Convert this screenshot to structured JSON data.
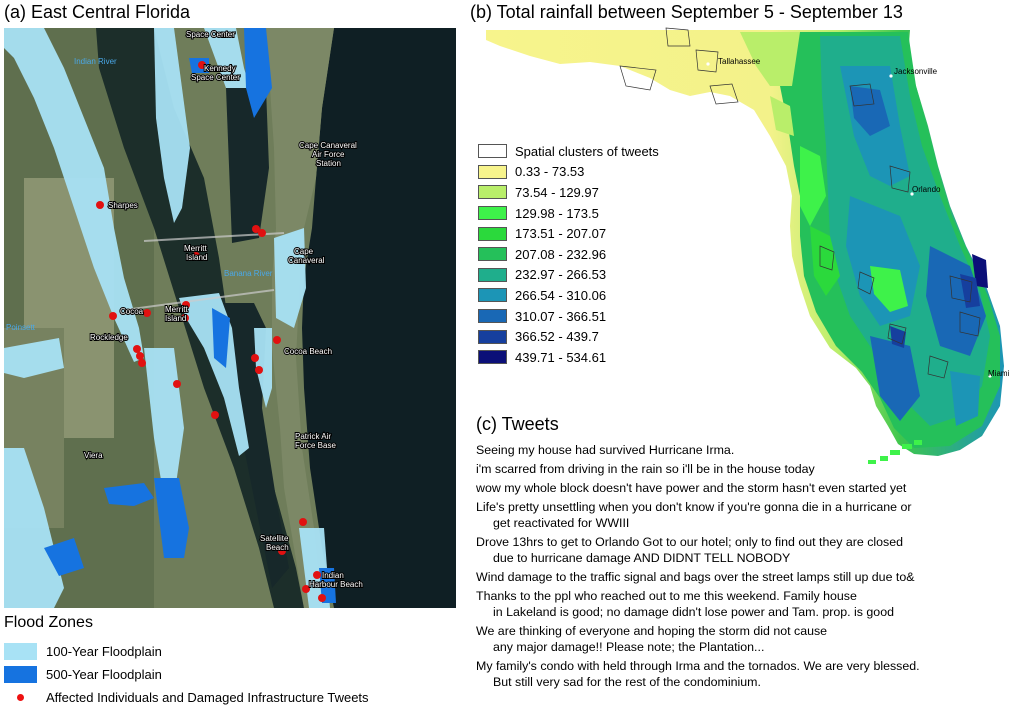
{
  "panel_a": {
    "title": "(a) East Central Florida",
    "labels": {
      "space_center_top": "Space Center",
      "kennedy": "Kennedy",
      "space_center": "Space Center",
      "indian_river": "Indian River",
      "ccafs_1": "Cape Canaveral",
      "ccafs_2": "Air Force",
      "ccafs_3": "Station",
      "sharpes": "Sharpes",
      "merritt_island_1": "Merritt",
      "merritt_island_2": "Island",
      "cape_1": "Cape",
      "cape_2": "Canaveral",
      "banana_river": "Banana River",
      "cocoa": "Cocoa",
      "merritt_island_b1": "Merritt",
      "merritt_island_b2": "Island",
      "poinsett": "Poinsett",
      "rockledge": "Rockledge",
      "cocoa_beach": "Cocoa Beach",
      "patrick_1": "Patrick Air",
      "patrick_2": "Force Base",
      "viera": "Viera",
      "satellite_1": "Satellite",
      "satellite_2": "Beach",
      "ihb_1": "Indian",
      "ihb_2": "Harbour Beach"
    },
    "legend": {
      "title": "Flood Zones",
      "items": [
        {
          "label": "100-Year Floodplain",
          "color": "#a8e2f5"
        },
        {
          "label": "500-Year Floodplain",
          "color": "#1673e0"
        },
        {
          "label": "Affected Individuals and Damaged Infrastructure Tweets",
          "color": "#e11111"
        }
      ]
    }
  },
  "panel_b": {
    "title": "(b) Total rainfall between September 5 - September 13",
    "cities": {
      "tallahassee": "Tallahassee",
      "jacksonville": "Jacksonville",
      "orlando": "Orlando",
      "miami": "Miami"
    },
    "legend": [
      {
        "label": "Spatial clusters of tweets",
        "color": "#ffffff"
      },
      {
        "label": "0.33 - 73.53",
        "color": "#f7f48c"
      },
      {
        "label": "73.54 - 129.97",
        "color": "#b9ee6a"
      },
      {
        "label": "129.98 - 173.5",
        "color": "#3ef24a"
      },
      {
        "label": "173.51 - 207.07",
        "color": "#2bd93c"
      },
      {
        "label": "207.08 - 232.96",
        "color": "#25c05a"
      },
      {
        "label": "232.97 - 266.53",
        "color": "#1fae8c"
      },
      {
        "label": "266.54 - 310.06",
        "color": "#1c95b6"
      },
      {
        "label": "310.07 - 366.51",
        "color": "#1968b5"
      },
      {
        "label": "366.52 - 439.7",
        "color": "#163f9e"
      },
      {
        "label": "439.71 - 534.61",
        "color": "#0b0f78"
      }
    ]
  },
  "panel_c": {
    "title": "(c) Tweets",
    "tweets": [
      {
        "line1": "Seeing my house had survived Hurricane Irma.",
        "line2": ""
      },
      {
        "line1": "i'm scarred from driving in the rain so i'll be in the house today",
        "line2": ""
      },
      {
        "line1": "wow my whole block doesn't have power and the storm hasn't even started yet",
        "line2": ""
      },
      {
        "line1": "Life's pretty unsettling when you don't know if you're gonna die in a hurricane or",
        "line2": "get reactivated for WWIII"
      },
      {
        "line1": "Drove 13hrs to get to Orlando Got to our hotel; only to find out they are closed",
        "line2": "due to hurricane damage AND DIDNT TELL NOBODY"
      },
      {
        "line1": "Wind damage to the traffic signal   and bags over the street lamps still up due to&",
        "line2": ""
      },
      {
        "line1": "Thanks to the ppl who reached out to me this weekend. Family house",
        "line2": "in Lakeland is good; no damage didn't lose power and Tam. prop. is good"
      },
      {
        "line1": "We are thinking of everyone and hoping the storm did not cause",
        "line2": "any major damage!! Please note; the Plantation..."
      },
      {
        "line1": "My family's condo with held through Irma and the tornados. We are very blessed.",
        "line2": "But still very sad for the rest of the condominium."
      }
    ]
  }
}
